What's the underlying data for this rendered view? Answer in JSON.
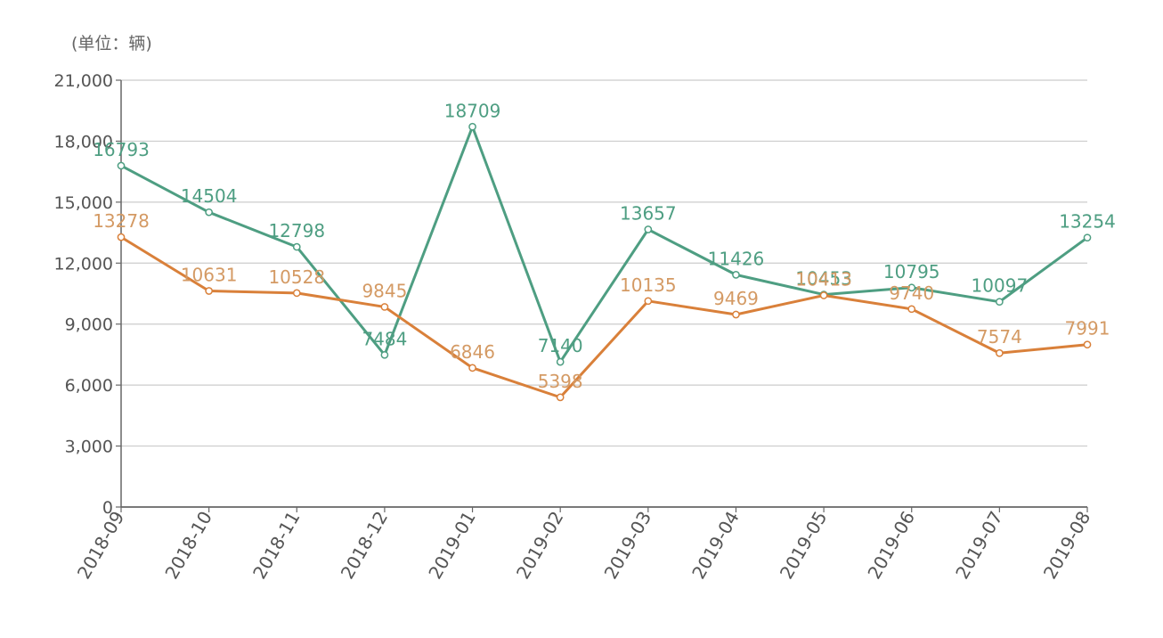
{
  "chart_data": {
    "type": "line",
    "unit_label": "(单位：辆)",
    "categories": [
      "2018-09",
      "2018-10",
      "2018-11",
      "2018-12",
      "2019-01",
      "2019-02",
      "2019-03",
      "2019-04",
      "2019-05",
      "2019-06",
      "2019-07",
      "2019-08"
    ],
    "y_ticks": [
      "0",
      "3,000",
      "6,000",
      "9,000",
      "12,000",
      "15,000",
      "18,000",
      "21,000"
    ],
    "ylim": [
      0,
      21000
    ],
    "grid": true,
    "legend": "none",
    "series": [
      {
        "color": "#4e9e82",
        "values": [
          16793,
          14504,
          12798,
          7484,
          18709,
          7140,
          13657,
          11426,
          10453,
          10795,
          10097,
          13254
        ],
        "labels": [
          "16793",
          "14504",
          "12798",
          "7484",
          "18709",
          "7140",
          "13657",
          "11426",
          "10453",
          "10795",
          "10097",
          "13254"
        ]
      },
      {
        "color": "#d9803a",
        "label_color": "#d49a64",
        "values": [
          13278,
          10631,
          10528,
          9845,
          6846,
          5398,
          10135,
          9469,
          10413,
          9740,
          7574,
          7991
        ],
        "labels": [
          "13278",
          "10631",
          "10528",
          "9845",
          "6846",
          "5398",
          "10135",
          "9469",
          "10413",
          "9740",
          "7574",
          "7991"
        ]
      }
    ]
  }
}
